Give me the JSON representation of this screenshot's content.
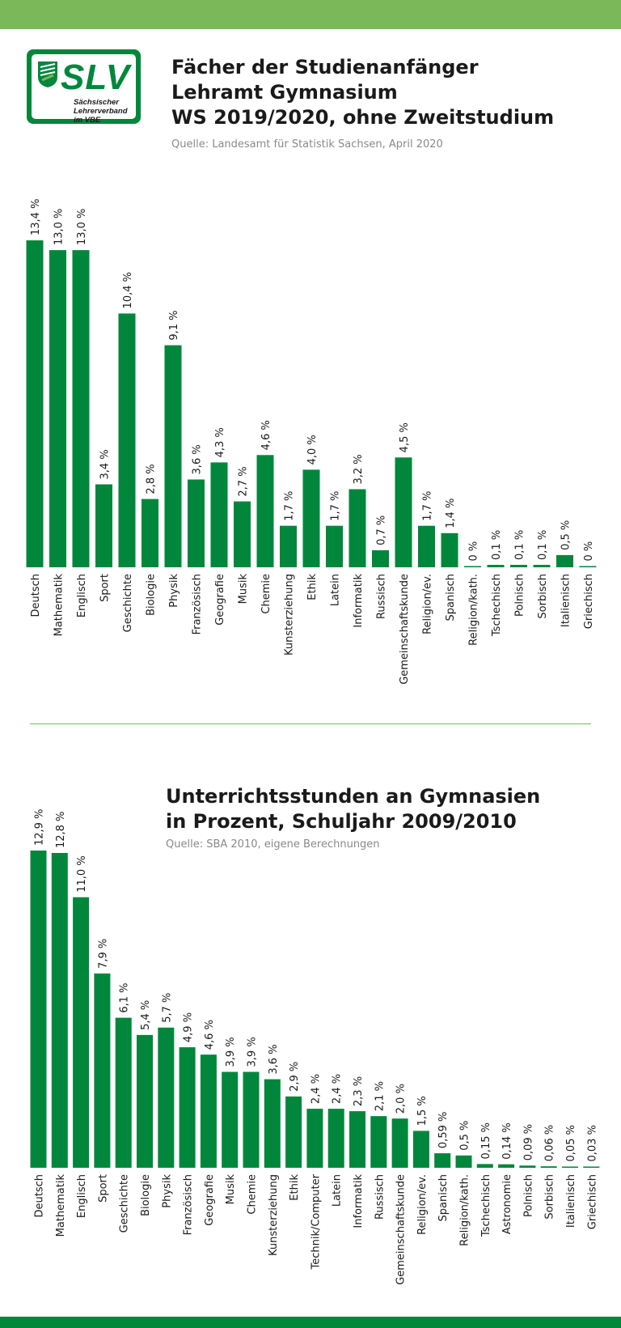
{
  "logo": {
    "text": "SLV",
    "subtext": "Sächsischer Lehrerverband im VBE"
  },
  "chart1": {
    "title_lines": [
      "Fächer der Studienanfänger",
      "Lehramt Gymnasium",
      "WS 2019/2020, ohne Zweitstudium"
    ],
    "source": "Quelle: Landesamt für Statistik Sachsen, April 2020"
  },
  "chart2": {
    "title_lines": [
      "Unterrichtsstunden an Gymnasien",
      "in Prozent, Schuljahr 2009/2010"
    ],
    "source": "Quelle: SBA 2010, eigene Berechnungen"
  },
  "colors": {
    "bar": "#00873c",
    "accent_light": "#7ab85a",
    "text": "#1a1a1a",
    "source": "#8a8a8a"
  },
  "chart_data": [
    {
      "type": "bar",
      "unit": "%",
      "categories": [
        "Deutsch",
        "Mathematik",
        "Englisch",
        "Sport",
        "Geschichte",
        "Biologie",
        "Physik",
        "Französisch",
        "Geografie",
        "Musik",
        "Chemie",
        "Kunsterziehung",
        "Ethik",
        "Latein",
        "Informatik",
        "Russisch",
        "Gemeinschaftskunde",
        "Religion/ev.",
        "Spanisch",
        "Religion/kath.",
        "Tschechisch",
        "Polnisch",
        "Sorbisch",
        "Italienisch",
        "Griechisch"
      ],
      "values": [
        13.4,
        13.0,
        13.0,
        3.4,
        10.4,
        2.8,
        9.1,
        3.6,
        4.3,
        2.7,
        4.6,
        1.7,
        4.0,
        1.7,
        3.2,
        0.7,
        4.5,
        1.7,
        1.4,
        0,
        0.1,
        0.1,
        0.1,
        0.5,
        0
      ],
      "value_labels": [
        "13,4 %",
        "13,0 %",
        "13,0 %",
        "3,4 %",
        "10,4 %",
        "2,8 %",
        "9,1 %",
        "3,6 %",
        "4,3 %",
        "2,7 %",
        "4,6 %",
        "1,7 %",
        "4,0 %",
        "1,7 %",
        "3,2 %",
        "0,7 %",
        "4,5 %",
        "1,7 %",
        "1,4 %",
        "0 %",
        "0,1 %",
        "0,1 %",
        "0,1 %",
        "0,5 %",
        "0 %"
      ],
      "ylim": [
        0,
        13.4
      ],
      "grid": false
    },
    {
      "type": "bar",
      "unit": "%",
      "categories": [
        "Deutsch",
        "Mathematik",
        "Englisch",
        "Sport",
        "Geschichte",
        "Biologie",
        "Physik",
        "Französisch",
        "Geografie",
        "Musik",
        "Chemie",
        "Kunsterziehung",
        "Ethik",
        "Technik/Computer",
        "Latein",
        "Informatik",
        "Russisch",
        "Gemeinschaftskunde",
        "Religion/ev.",
        "Spanisch",
        "Religion/kath.",
        "Tschechisch",
        "Astronomie",
        "Polnisch",
        "Sorbisch",
        "Italienisch",
        "Griechisch"
      ],
      "values": [
        12.9,
        12.8,
        11.0,
        7.9,
        6.1,
        5.4,
        5.7,
        4.9,
        4.6,
        3.9,
        3.9,
        3.6,
        2.9,
        2.4,
        2.4,
        2.3,
        2.1,
        2.0,
        1.5,
        0.59,
        0.5,
        0.15,
        0.14,
        0.09,
        0.06,
        0.05,
        0.03
      ],
      "value_labels": [
        "12,9 %",
        "12,8 %",
        "11,0 %",
        "7,9 %",
        "6,1 %",
        "5,4 %",
        "5,7 %",
        "4,9 %",
        "4,6 %",
        "3,9 %",
        "3,9 %",
        "3,6 %",
        "2,9 %",
        "2,4 %",
        "2,4 %",
        "2,3 %",
        "2,1 %",
        "2,0 %",
        "1,5 %",
        "0,59 %",
        "0,5 %",
        "0,15 %",
        "0,14 %",
        "0,09 %",
        "0,06 %",
        "0,05 %",
        "0,03 %"
      ],
      "ylim": [
        0,
        12.9
      ],
      "grid": false
    }
  ]
}
